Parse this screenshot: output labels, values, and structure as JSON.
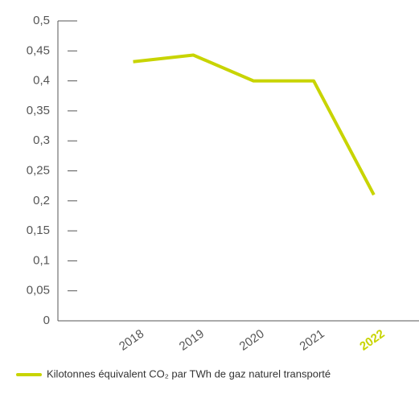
{
  "chart_data": {
    "type": "line",
    "categories": [
      "2018",
      "2019",
      "2020",
      "2021",
      "2022"
    ],
    "series": [
      {
        "name": "Kilotonnes équivalent CO₂ par TWh de gaz naturel transporté",
        "color": "#c8d400",
        "values": [
          0.432,
          0.443,
          0.4,
          0.4,
          0.21
        ]
      }
    ],
    "highlighted_category": "2022",
    "ylim": [
      0,
      0.5
    ],
    "yticks": [
      0,
      {
        "value": 0.05,
        "label": "0,05"
      },
      {
        "value": 0.1,
        "label": "0,1"
      },
      {
        "value": 0.15,
        "label": "0,15"
      },
      {
        "value": 0.2,
        "label": "0,2"
      },
      {
        "value": 0.25,
        "label": "0,25"
      },
      {
        "value": 0.3,
        "label": "0,3"
      },
      {
        "value": 0.35,
        "label": "0,35"
      },
      {
        "value": 0.4,
        "label": "0,4"
      },
      {
        "value": 0.45,
        "label": "0,45"
      },
      {
        "value": 0.5,
        "label": "0,5"
      }
    ]
  }
}
